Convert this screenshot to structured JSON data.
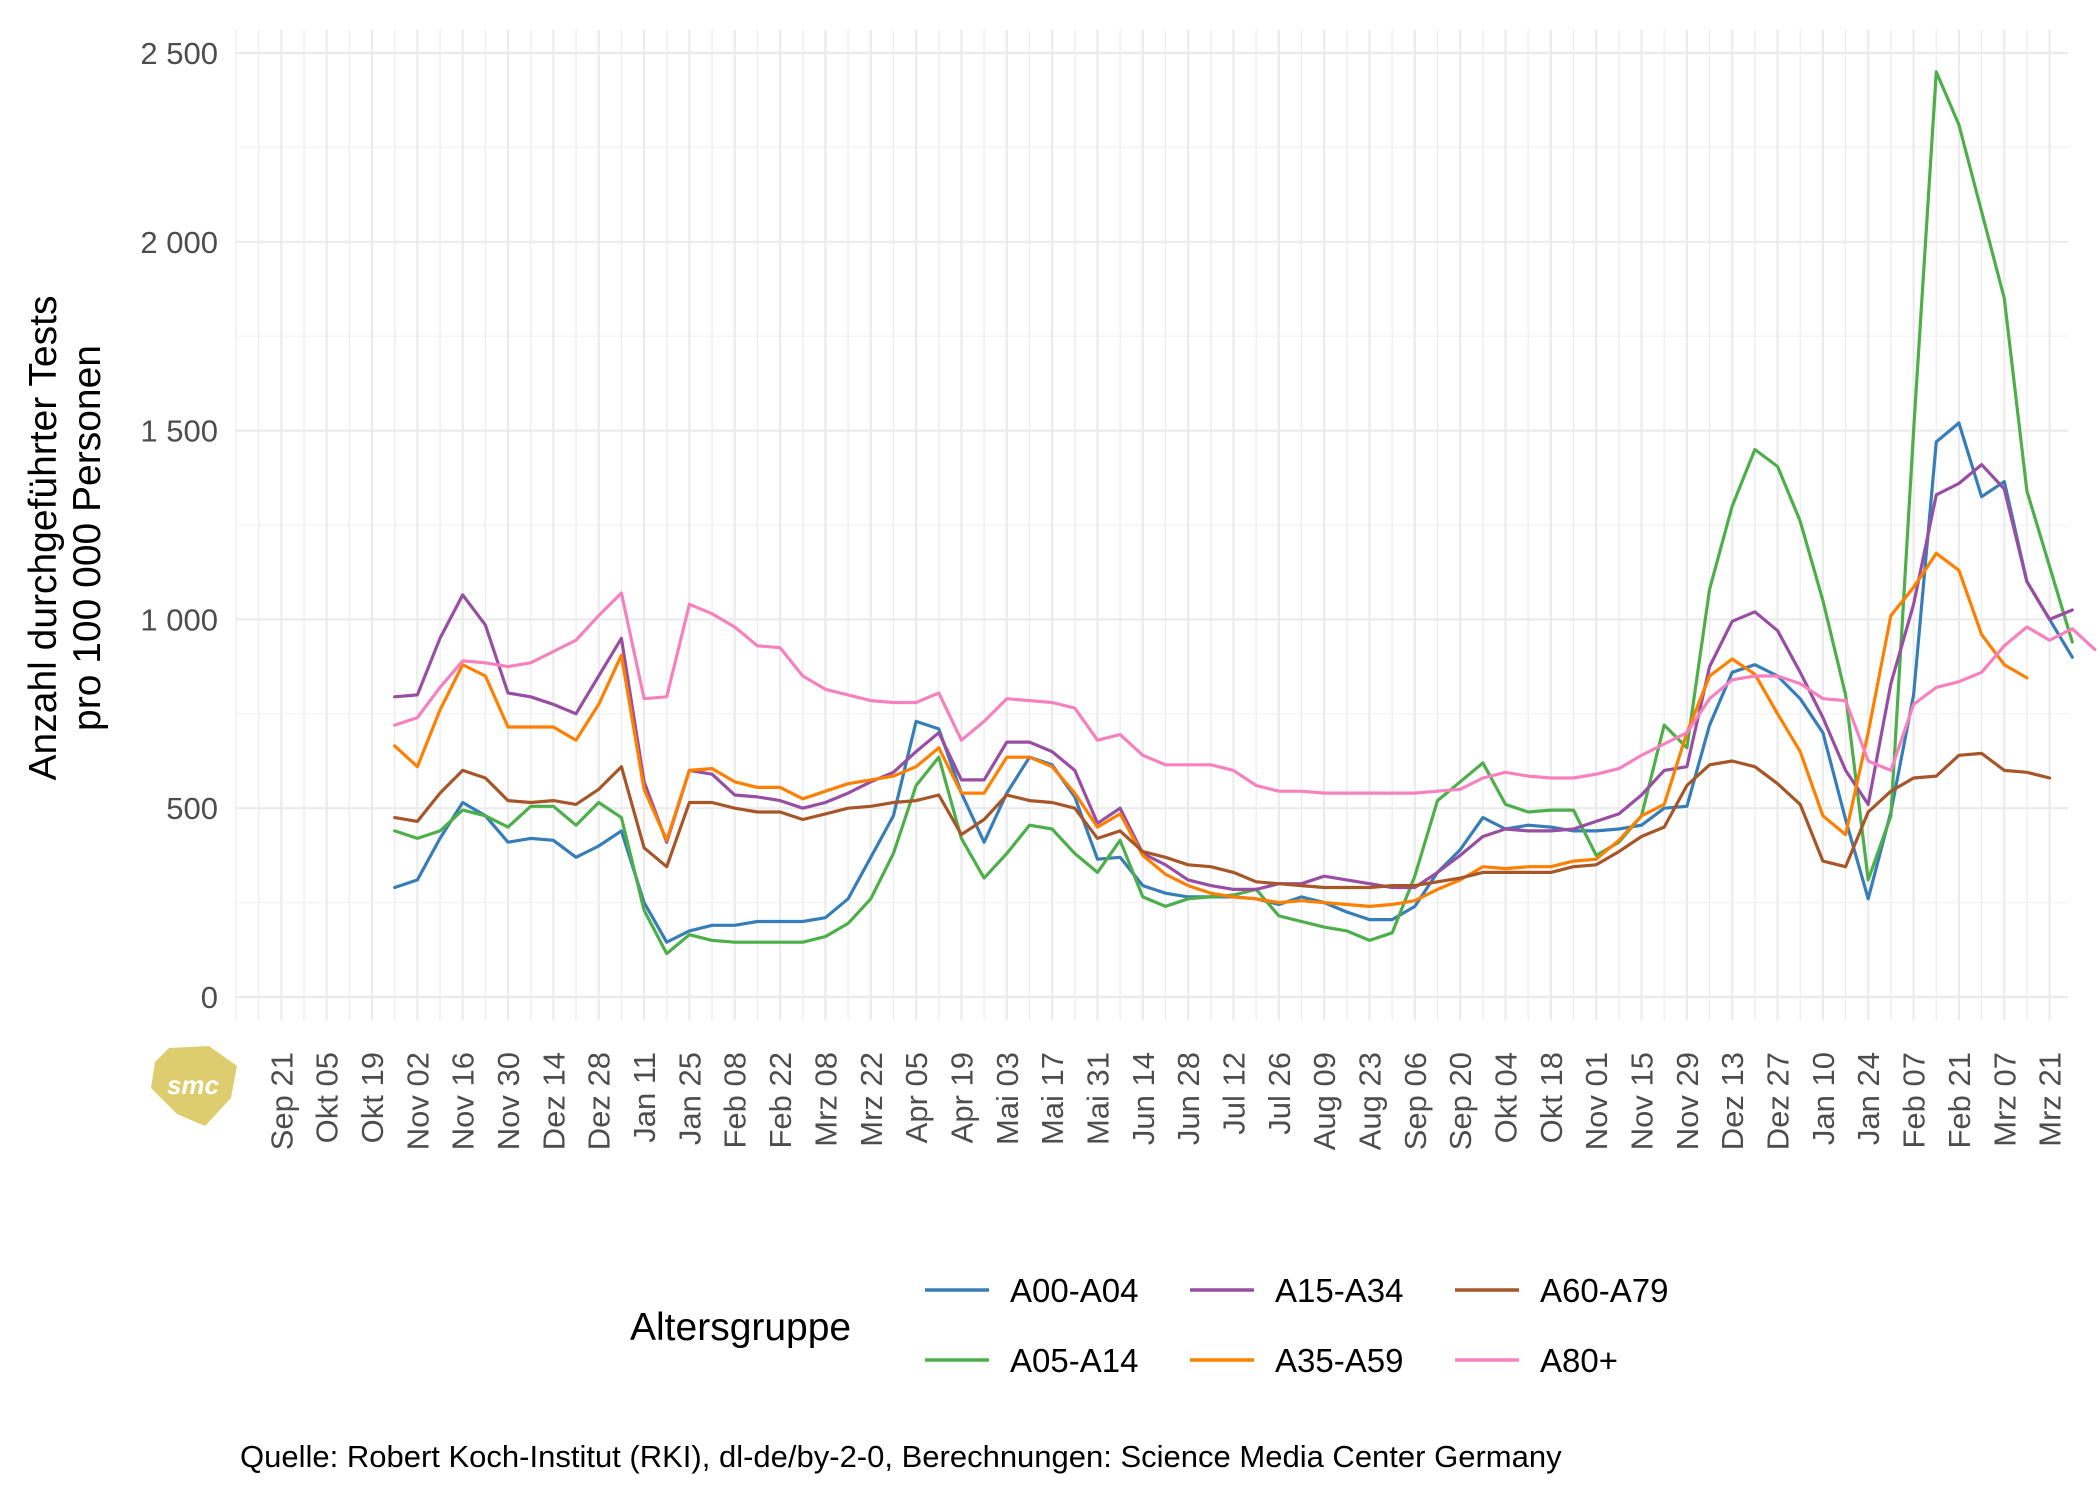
{
  "chart_data": {
    "type": "line",
    "title": "",
    "xlabel": "",
    "ylabel_lines": [
      "Anzahl durchgeführter Tests",
      "pro 100 000 Personen"
    ],
    "ylim": [
      0,
      2500
    ],
    "y_ticks": [
      {
        "value": 0,
        "label": "0"
      },
      {
        "value": 500,
        "label": "500"
      },
      {
        "value": 1000,
        "label": "1 000"
      },
      {
        "value": 1500,
        "label": "1 500"
      },
      {
        "value": 2000,
        "label": "2 000"
      },
      {
        "value": 2500,
        "label": "2 500"
      }
    ],
    "x_ticks": [
      "Sep 21",
      "Okt 05",
      "Okt 19",
      "Nov 02",
      "Nov 16",
      "Nov 30",
      "Dez 14",
      "Dez 28",
      "Jan 11",
      "Jan 25",
      "Feb 08",
      "Feb 22",
      "Mrz 08",
      "Mrz 22",
      "Apr 05",
      "Apr 19",
      "Mai 03",
      "Mai 17",
      "Mai 31",
      "Jun 14",
      "Jun 28",
      "Jul 12",
      "Jul 26",
      "Aug 09",
      "Aug 23",
      "Sep 06",
      "Sep 20",
      "Okt 04",
      "Okt 18",
      "Nov 01",
      "Nov 15",
      "Nov 29",
      "Dez 13",
      "Dez 27",
      "Jan 10",
      "Jan 24",
      "Feb 07",
      "Feb 21",
      "Mrz 07",
      "Mrz 21"
    ],
    "x_start_week": 2,
    "grid": true,
    "legend": {
      "title": "Altersgruppe",
      "position": "bottom"
    },
    "series": [
      {
        "name": "A00-A04",
        "color": "#377EB8",
        "values": [
          290,
          310,
          420,
          515,
          480,
          410,
          420,
          415,
          370,
          400,
          440,
          250,
          145,
          175,
          190,
          190,
          200,
          200,
          200,
          210,
          260,
          370,
          480,
          730,
          710,
          540,
          410,
          540,
          635,
          615,
          530,
          365,
          370,
          295,
          275,
          265,
          265,
          265,
          260,
          245,
          265,
          250,
          225,
          205,
          205,
          240,
          330,
          390,
          475,
          445,
          455,
          450,
          440,
          440,
          445,
          455,
          500,
          505,
          720,
          860,
          880,
          850,
          790,
          700,
          470,
          260,
          490,
          800,
          1470,
          1520,
          1325,
          1365,
          1100,
          1000,
          900
        ]
      },
      {
        "name": "A05-A14",
        "color": "#4DAF4A",
        "values": [
          440,
          420,
          440,
          495,
          480,
          450,
          505,
          505,
          455,
          515,
          475,
          230,
          115,
          165,
          150,
          145,
          145,
          145,
          145,
          160,
          195,
          260,
          380,
          560,
          635,
          420,
          315,
          380,
          455,
          445,
          380,
          330,
          415,
          265,
          240,
          260,
          265,
          270,
          285,
          215,
          200,
          185,
          175,
          150,
          170,
          320,
          520,
          570,
          620,
          510,
          490,
          495,
          495,
          375,
          410,
          480,
          720,
          660,
          1080,
          1300,
          1450,
          1405,
          1260,
          1050,
          800,
          310,
          480,
          1500,
          2450,
          2310,
          2080,
          1850,
          1340,
          1140,
          940
        ]
      },
      {
        "name": "A15-A34",
        "color": "#984EA3",
        "values": [
          795,
          800,
          950,
          1065,
          985,
          805,
          795,
          775,
          750,
          850,
          950,
          570,
          410,
          600,
          590,
          535,
          530,
          520,
          500,
          515,
          540,
          570,
          595,
          650,
          700,
          575,
          575,
          675,
          675,
          650,
          600,
          460,
          500,
          380,
          350,
          310,
          295,
          285,
          285,
          300,
          300,
          320,
          310,
          300,
          290,
          290,
          330,
          375,
          425,
          445,
          440,
          440,
          445,
          465,
          485,
          535,
          600,
          610,
          875,
          995,
          1020,
          970,
          860,
          740,
          600,
          510,
          830,
          1040,
          1330,
          1360,
          1410,
          1345,
          1100,
          1000,
          1025
        ]
      },
      {
        "name": "A35-A59",
        "color": "#FF7F00",
        "values": [
          665,
          610,
          760,
          880,
          850,
          715,
          715,
          715,
          680,
          775,
          905,
          550,
          415,
          600,
          605,
          570,
          555,
          555,
          525,
          545,
          565,
          575,
          585,
          610,
          660,
          540,
          540,
          635,
          635,
          610,
          540,
          450,
          485,
          375,
          325,
          295,
          275,
          265,
          260,
          250,
          255,
          250,
          245,
          240,
          245,
          255,
          285,
          310,
          345,
          340,
          345,
          345,
          360,
          365,
          415,
          480,
          510,
          700,
          850,
          895,
          855,
          750,
          650,
          480,
          430,
          700,
          1010,
          1085,
          1175,
          1130,
          960,
          880,
          845
        ]
      },
      {
        "name": "A60-A79",
        "color": "#A65628",
        "values": [
          475,
          465,
          540,
          600,
          580,
          520,
          515,
          520,
          510,
          550,
          610,
          395,
          345,
          515,
          515,
          500,
          490,
          490,
          470,
          485,
          500,
          505,
          515,
          520,
          535,
          430,
          470,
          535,
          520,
          515,
          500,
          420,
          440,
          385,
          370,
          350,
          345,
          330,
          305,
          300,
          295,
          290,
          290,
          290,
          295,
          295,
          305,
          315,
          330,
          330,
          330,
          330,
          345,
          350,
          385,
          425,
          450,
          560,
          615,
          625,
          610,
          565,
          510,
          360,
          345,
          490,
          545,
          580,
          585,
          640,
          645,
          600,
          595,
          580
        ]
      },
      {
        "name": "A80+",
        "color": "#F781BF",
        "values": [
          720,
          740,
          820,
          890,
          885,
          875,
          885,
          915,
          945,
          1010,
          1070,
          790,
          795,
          1040,
          1015,
          980,
          930,
          925,
          850,
          815,
          800,
          785,
          780,
          780,
          805,
          680,
          730,
          790,
          785,
          780,
          765,
          680,
          695,
          640,
          615,
          615,
          615,
          600,
          560,
          545,
          545,
          540,
          540,
          540,
          540,
          540,
          545,
          550,
          580,
          595,
          585,
          580,
          580,
          590,
          605,
          640,
          670,
          700,
          790,
          840,
          850,
          850,
          830,
          790,
          785,
          625,
          600,
          775,
          820,
          835,
          860,
          930,
          980,
          945,
          975,
          920
        ]
      }
    ]
  },
  "caption": "Quelle: Robert Koch-Institut (RKI), dl-de/by-2-0, Berechnungen: Science Media Center Germany",
  "logo_text": "smc"
}
